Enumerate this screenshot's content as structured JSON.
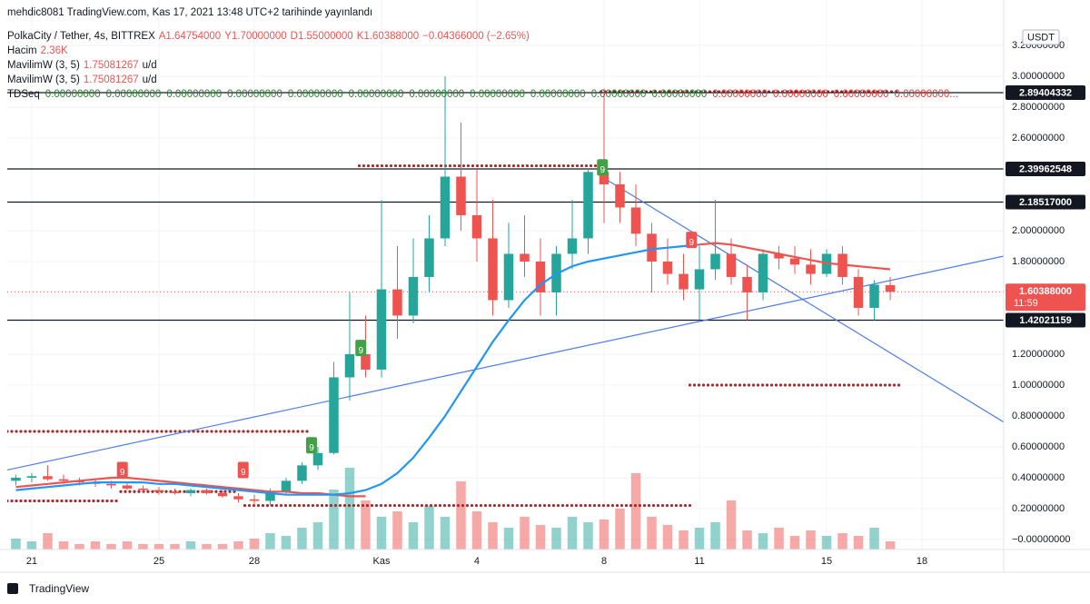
{
  "header": {
    "publisher": "mehdic8081 TradingView.com, Kas 17, 2021 13:48 UTC+2 tarihinde yayınlandı",
    "symbol": "PolkaCity / Tether, 4s, BITTREX",
    "open": "A1.64754000",
    "high": "Y1.70000000",
    "low": "D1.55000000",
    "close": "K1.60388000",
    "change": "−0.04366000 (−2.65%)",
    "volume_name": "Hacim",
    "volume_value": "2.36K",
    "indicators": [
      {
        "name": "MavilimW (3, 5)",
        "value": "1.75081267",
        "suffix": "u/d"
      },
      {
        "name": "MavilimW (3, 5)",
        "value": "1.75081267",
        "suffix": "u/d"
      }
    ],
    "tdseq_name": "TDSeq",
    "tdseq_values": [
      "0.00000000",
      "0.00000000",
      "0.00000000",
      "0.00000000",
      "0.00000000",
      "0.00000000",
      "0.00000000",
      "0.00000000",
      "0.00000000",
      "0.00000000",
      "0.00000000",
      "0.00000000",
      "0.00000000",
      "0.00000000",
      "0.00000000..."
    ],
    "tdseq_colors": [
      "#2e7d32",
      "#2e7d32",
      "#2e7d32",
      "#2e7d32",
      "#2e7d32",
      "#2e7d32",
      "#2e7d32",
      "#2e7d32",
      "#2e7d32",
      "#2e7d32",
      "#2e7d32",
      "#e53935",
      "#e53935",
      "#e53935",
      "#e53935"
    ],
    "currency": "USDT"
  },
  "footer": {
    "brand": "TradingView"
  },
  "chart_data": {
    "type": "candlestick",
    "grid": true,
    "up_color": "#26a69a",
    "down_color": "#ef5350",
    "xlim": [
      0.23,
      31.57
    ],
    "xticks": [
      {
        "value": 1,
        "label": "21"
      },
      {
        "value": 5,
        "label": "25"
      },
      {
        "value": 8,
        "label": "28"
      },
      {
        "value": 12,
        "label": "Kas"
      },
      {
        "value": 15,
        "label": "4"
      },
      {
        "value": 19,
        "label": "8"
      },
      {
        "value": 22,
        "label": "11"
      },
      {
        "value": 26,
        "label": "15"
      },
      {
        "value": 29,
        "label": "18"
      }
    ],
    "ylim": [
      -0.065,
      3.288
    ],
    "yticks": [
      {
        "value": 3.2,
        "label": "3.20000000"
      },
      {
        "value": 3.0,
        "label": "3.00000000"
      },
      {
        "value": 2.8,
        "label": "2.80000000"
      },
      {
        "value": 2.6,
        "label": "2.60000000"
      },
      {
        "value": 2.0,
        "label": "2.00000000"
      },
      {
        "value": 1.8,
        "label": "1.80000000"
      },
      {
        "value": 1.2,
        "label": "1.20000000"
      },
      {
        "value": 1.0,
        "label": "1.00000000"
      },
      {
        "value": 0.8,
        "label": "0.80000000"
      },
      {
        "value": 0.6,
        "label": "0.60000000"
      },
      {
        "value": 0.4,
        "label": "0.40000000"
      },
      {
        "value": 0.2,
        "label": "0.20000000"
      },
      {
        "value": 0,
        "label": "−0.00000000"
      }
    ],
    "x": [
      0.5,
      1,
      1.5,
      2,
      2.5,
      3,
      3.5,
      4,
      4.5,
      5,
      5.5,
      6,
      6.5,
      7,
      7.5,
      8,
      8.5,
      9,
      9.5,
      10,
      10.5,
      11,
      11.5,
      12,
      12.5,
      13,
      13.5,
      14,
      14.5,
      15,
      15.5,
      16,
      16.5,
      17,
      17.5,
      18,
      18.5,
      19,
      19.5,
      20,
      20.5,
      21,
      21.5,
      22,
      22.5,
      23,
      23.5,
      24,
      24.5,
      25,
      25.5,
      26,
      26.5,
      27,
      27.5,
      28
    ],
    "ohlc": [
      [
        0.38,
        0.42,
        0.35,
        0.4
      ],
      [
        0.4,
        0.43,
        0.37,
        0.41
      ],
      [
        0.41,
        0.48,
        0.38,
        0.39
      ],
      [
        0.39,
        0.42,
        0.36,
        0.38
      ],
      [
        0.38,
        0.4,
        0.35,
        0.37
      ],
      [
        0.37,
        0.39,
        0.34,
        0.36
      ],
      [
        0.36,
        0.38,
        0.33,
        0.35
      ],
      [
        0.35,
        0.37,
        0.32,
        0.33
      ],
      [
        0.33,
        0.35,
        0.3,
        0.32
      ],
      [
        0.32,
        0.34,
        0.29,
        0.31
      ],
      [
        0.31,
        0.33,
        0.29,
        0.3
      ],
      [
        0.3,
        0.33,
        0.28,
        0.32
      ],
      [
        0.32,
        0.33,
        0.29,
        0.3
      ],
      [
        0.3,
        0.32,
        0.27,
        0.28
      ],
      [
        0.28,
        0.3,
        0.24,
        0.26
      ],
      [
        0.26,
        0.29,
        0.22,
        0.25
      ],
      [
        0.25,
        0.33,
        0.22,
        0.31
      ],
      [
        0.31,
        0.4,
        0.29,
        0.38
      ],
      [
        0.38,
        0.5,
        0.36,
        0.48
      ],
      [
        0.48,
        0.6,
        0.45,
        0.56
      ],
      [
        0.56,
        1.15,
        0.55,
        1.05
      ],
      [
        1.05,
        1.6,
        0.9,
        1.2
      ],
      [
        1.2,
        1.45,
        1.05,
        1.1
      ],
      [
        1.1,
        2.2,
        1.05,
        1.62
      ],
      [
        1.62,
        1.9,
        1.3,
        1.45
      ],
      [
        1.45,
        1.95,
        1.4,
        1.7
      ],
      [
        1.7,
        2.1,
        1.6,
        1.95
      ],
      [
        1.95,
        3.0,
        1.9,
        2.35
      ],
      [
        2.35,
        2.7,
        2.0,
        2.1
      ],
      [
        2.1,
        2.4,
        1.8,
        1.95
      ],
      [
        1.95,
        2.2,
        1.45,
        1.55
      ],
      [
        1.55,
        2.05,
        1.5,
        1.85
      ],
      [
        1.85,
        2.1,
        1.7,
        1.8
      ],
      [
        1.8,
        1.95,
        1.45,
        1.6
      ],
      [
        1.6,
        1.9,
        1.45,
        1.85
      ],
      [
        1.85,
        2.2,
        1.75,
        1.95
      ],
      [
        1.95,
        2.4,
        1.85,
        2.38
      ],
      [
        2.38,
        2.92,
        2.05,
        2.3
      ],
      [
        2.3,
        2.38,
        2.05,
        2.15
      ],
      [
        2.15,
        2.3,
        1.9,
        1.98
      ],
      [
        1.98,
        2.05,
        1.6,
        1.8
      ],
      [
        1.8,
        1.95,
        1.65,
        1.72
      ],
      [
        1.72,
        1.85,
        1.55,
        1.62
      ],
      [
        1.62,
        1.9,
        1.42,
        1.75
      ],
      [
        1.75,
        2.2,
        1.68,
        1.85
      ],
      [
        1.85,
        1.95,
        1.65,
        1.7
      ],
      [
        1.7,
        1.78,
        1.42,
        1.6
      ],
      [
        1.6,
        1.88,
        1.55,
        1.85
      ],
      [
        1.85,
        1.9,
        1.75,
        1.82
      ],
      [
        1.82,
        1.9,
        1.72,
        1.78
      ],
      [
        1.78,
        1.88,
        1.65,
        1.72
      ],
      [
        1.72,
        1.88,
        1.7,
        1.85
      ],
      [
        1.85,
        1.9,
        1.65,
        1.7
      ],
      [
        1.7,
        1.75,
        1.45,
        1.5
      ],
      [
        1.5,
        1.68,
        1.42,
        1.65
      ],
      [
        1.64754,
        1.7,
        1.55,
        1.60388
      ]
    ],
    "volume": [
      4,
      3,
      6,
      3,
      2,
      3,
      2,
      3,
      2,
      2,
      2,
      3,
      2,
      2,
      3,
      4,
      6,
      5,
      8,
      10,
      22,
      30,
      18,
      12,
      14,
      10,
      16,
      12,
      25,
      14,
      10,
      8,
      12,
      9,
      8,
      12,
      10,
      11,
      15,
      28,
      12,
      9,
      7,
      8,
      10,
      18,
      7,
      6,
      8,
      5,
      7,
      5,
      6,
      5,
      8,
      3
    ],
    "volume_lim": [
      0,
      40
    ],
    "lines": [
      {
        "color": "#ef5350",
        "values": [
          0.34,
          0.35,
          0.36,
          0.37,
          0.38,
          0.39,
          0.4,
          0.4,
          0.39,
          0.38,
          0.37,
          0.36,
          0.35,
          0.34,
          0.33,
          0.32,
          0.31,
          0.31,
          0.3,
          0.3,
          0.29,
          0.28,
          0.28,
          null,
          null,
          null,
          null,
          null,
          null,
          null,
          null,
          null,
          null,
          null,
          null,
          null,
          null,
          null,
          null,
          null,
          null,
          null,
          null,
          1.91,
          1.92,
          1.91,
          1.89,
          1.87,
          1.85,
          1.83,
          1.81,
          1.79,
          1.78,
          1.77,
          1.76,
          1.75
        ]
      },
      {
        "color": "#2196f3",
        "values": [
          0.32,
          0.33,
          0.34,
          0.35,
          0.36,
          0.37,
          0.37,
          0.37,
          0.37,
          0.36,
          0.36,
          0.35,
          0.34,
          0.33,
          0.32,
          0.31,
          0.3,
          0.29,
          0.29,
          0.29,
          0.29,
          0.3,
          0.32,
          0.36,
          0.43,
          0.53,
          0.66,
          0.8,
          0.96,
          1.12,
          1.28,
          1.42,
          1.55,
          1.65,
          1.72,
          1.77,
          1.8,
          1.82,
          1.84,
          1.86,
          1.88,
          1.89,
          1.9,
          1.91,
          null,
          null,
          null,
          null,
          null,
          null,
          null,
          null,
          null,
          null,
          null,
          null
        ]
      }
    ],
    "levels": [
      {
        "value": 2.89404332,
        "label": "2.89404332"
      },
      {
        "value": 2.39962548,
        "label": "2.39962548"
      },
      {
        "value": 2.18517,
        "label": "2.18517000"
      },
      {
        "value": 1.42021159,
        "label": "1.42021159"
      }
    ],
    "last_price": {
      "value": 1.60388,
      "label": "1.60388000",
      "countdown": "11:59",
      "color": "#ef5350"
    },
    "trendlines": [
      {
        "x": [
          0.23,
          31.57
        ],
        "y": [
          0.45,
          1.835
        ],
        "color": "#4c7de8"
      },
      {
        "x": [
          19,
          31.57
        ],
        "y": [
          2.34,
          0.76
        ],
        "color": "#4c7de8"
      }
    ],
    "dotted_levels": [
      {
        "x": [
          0.23,
          9.7
        ],
        "value": 0.7
      },
      {
        "x": [
          0.23,
          3.7
        ],
        "value": 0.25
      },
      {
        "x": [
          3.8,
          7.4
        ],
        "value": 0.31
      },
      {
        "x": [
          7.7,
          21.7
        ],
        "value": 0.22
      },
      {
        "x": [
          11.3,
          19
        ],
        "value": 2.42
      },
      {
        "x": [
          18.9,
          28.3
        ],
        "value": 2.9
      },
      {
        "x": [
          21.7,
          28.3
        ],
        "value": 1.0
      }
    ],
    "dot_color": "#a52a2a",
    "td_labels": [
      {
        "x": 3.85,
        "value": 0.45,
        "label": "9",
        "color": "#ef5350"
      },
      {
        "x": 7.65,
        "value": 0.45,
        "label": "9",
        "color": "#ef5350"
      },
      {
        "x": 9.8,
        "value": 0.61,
        "label": "9",
        "color": "#43a047"
      },
      {
        "x": 11.35,
        "value": 1.24,
        "label": "9",
        "color": "#43a047"
      },
      {
        "x": 18.95,
        "value": 2.41,
        "label": "9",
        "color": "#43a047"
      },
      {
        "x": 21.75,
        "value": 1.94,
        "label": "9",
        "color": "#ef5350"
      }
    ]
  }
}
